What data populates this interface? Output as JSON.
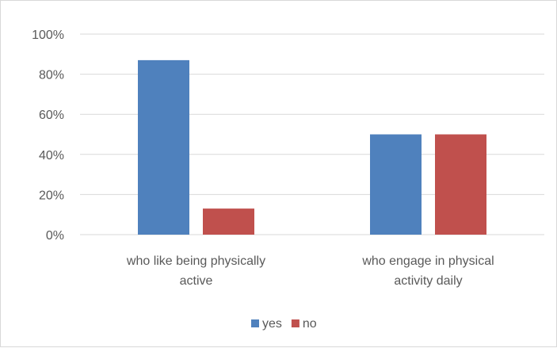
{
  "chart_data": {
    "type": "bar",
    "categories": [
      [
        "who like being physically",
        "active"
      ],
      [
        "who engage in physical",
        "activity daily"
      ]
    ],
    "series": [
      {
        "name": "yes",
        "values": [
          87,
          50
        ],
        "color": "#4f81bd"
      },
      {
        "name": "no",
        "values": [
          13,
          50
        ],
        "color": "#c0504d"
      }
    ],
    "y_ticks": [
      "0%",
      "20%",
      "40%",
      "60%",
      "80%",
      "100%"
    ],
    "ylim": [
      0,
      100
    ],
    "grid": true,
    "legend": "bottom",
    "colors": {
      "gridline": "#d9d9d9",
      "text": "#595959",
      "border": "#d9d9d9"
    }
  }
}
